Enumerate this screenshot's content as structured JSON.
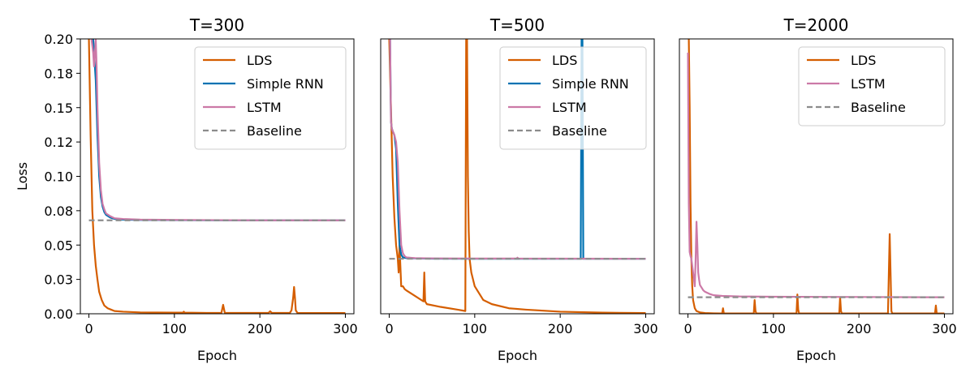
{
  "chart_data": [
    {
      "type": "line",
      "title": "T=300",
      "xlabel": "Epoch",
      "ylabel": "Loss",
      "xlim": [
        -10,
        310
      ],
      "ylim": [
        0,
        0.2
      ],
      "xticks": [
        0,
        100,
        200,
        300
      ],
      "yticks": [
        0,
        0.025,
        0.05,
        0.075,
        0.1,
        0.125,
        0.15,
        0.175,
        0.2
      ],
      "ytick_labels": [
        "0.00",
        "0.03",
        "0.05",
        "0.08",
        "0.10",
        "0.12",
        "0.15",
        "0.18",
        "0.20"
      ],
      "show_yticks": true,
      "legend_position": "top-right",
      "series": [
        {
          "name": "LDS",
          "color": "#d55e00",
          "dash": false,
          "x": [
            0,
            2,
            4,
            6,
            8,
            10,
            12,
            15,
            18,
            22,
            26,
            30,
            40,
            60,
            100,
            110,
            111,
            112,
            140,
            155,
            157,
            159,
            180,
            210,
            212,
            214,
            235,
            237,
            239,
            240,
            241,
            242,
            244,
            270,
            300
          ],
          "y": [
            0.2,
            0.13,
            0.075,
            0.05,
            0.035,
            0.025,
            0.016,
            0.01,
            0.006,
            0.004,
            0.003,
            0.002,
            0.0015,
            0.001,
            0.0008,
            0.0008,
            0.0015,
            0.0008,
            0.0006,
            0.0006,
            0.0065,
            0.0006,
            0.0006,
            0.0006,
            0.0018,
            0.0006,
            0.0006,
            0.0025,
            0.012,
            0.0195,
            0.012,
            0.0025,
            0.0006,
            0.0005,
            0.0005
          ]
        },
        {
          "name": "Simple RNN",
          "color": "#0072b2",
          "dash": false,
          "x": [
            5,
            8,
            10,
            12,
            14,
            16,
            18,
            20,
            25,
            30,
            40,
            60,
            100,
            200,
            300
          ],
          "y": [
            0.2,
            0.17,
            0.13,
            0.1,
            0.085,
            0.078,
            0.074,
            0.072,
            0.07,
            0.069,
            0.0685,
            0.0683,
            0.0681,
            0.068,
            0.068
          ]
        },
        {
          "name": "LSTM",
          "color": "#cc79a7",
          "dash": false,
          "x": [
            3,
            5,
            6,
            7,
            8,
            9,
            10,
            12,
            14,
            16,
            18,
            20,
            25,
            30,
            40,
            60,
            100,
            200,
            300
          ],
          "y": [
            0.2,
            0.19,
            0.18,
            0.19,
            0.2,
            0.18,
            0.15,
            0.11,
            0.09,
            0.08,
            0.076,
            0.073,
            0.071,
            0.0695,
            0.069,
            0.0685,
            0.0683,
            0.068,
            0.068
          ]
        },
        {
          "name": "Baseline",
          "color": "#8c8c8c",
          "dash": true,
          "x": [
            0,
            300
          ],
          "y": [
            0.068,
            0.068
          ]
        }
      ]
    },
    {
      "type": "line",
      "title": "T=500",
      "xlabel": "Epoch",
      "ylabel": "",
      "xlim": [
        -10,
        310
      ],
      "ylim": [
        0,
        0.2
      ],
      "show_yticks": false,
      "xticks": [
        0,
        100,
        200,
        300
      ],
      "legend_position": "top-right",
      "series": [
        {
          "name": "LDS",
          "color": "#d55e00",
          "dash": false,
          "x": [
            0,
            2,
            4,
            6,
            8,
            10,
            11,
            12,
            13,
            14,
            15,
            16,
            18,
            20,
            30,
            40,
            41,
            42,
            43,
            44,
            60,
            80,
            89,
            90,
            91,
            92,
            93,
            94,
            96,
            98,
            100,
            105,
            110,
            120,
            140,
            160,
            200,
            250,
            300
          ],
          "y": [
            0.2,
            0.15,
            0.1,
            0.07,
            0.05,
            0.04,
            0.03,
            0.05,
            0.035,
            0.02,
            0.02,
            0.02,
            0.018,
            0.017,
            0.013,
            0.009,
            0.03,
            0.009,
            0.008,
            0.007,
            0.005,
            0.003,
            0.002,
            0.2,
            0.2,
            0.1,
            0.06,
            0.04,
            0.03,
            0.025,
            0.02,
            0.015,
            0.01,
            0.007,
            0.004,
            0.003,
            0.0015,
            0.0008,
            0.0005
          ]
        },
        {
          "name": "Simple RNN",
          "color": "#0072b2",
          "dash": false,
          "x": [
            1,
            2,
            3,
            4,
            6,
            8,
            10,
            12,
            14,
            16,
            20,
            30,
            50,
            100,
            150,
            224,
            225,
            226,
            227,
            228,
            250,
            300
          ],
          "y": [
            0.2,
            0.14,
            0.135,
            0.133,
            0.13,
            0.12,
            0.08,
            0.05,
            0.043,
            0.041,
            0.0405,
            0.0403,
            0.0401,
            0.04,
            0.04,
            0.04,
            0.2,
            0.2,
            0.04,
            0.04,
            0.04,
            0.04
          ]
        },
        {
          "name": "LSTM",
          "color": "#cc79a7",
          "dash": false,
          "x": [
            1,
            2,
            3,
            4,
            6,
            8,
            10,
            12,
            14,
            16,
            18,
            20,
            30,
            50,
            100,
            149,
            150,
            151,
            200,
            300
          ],
          "y": [
            0.2,
            0.14,
            0.135,
            0.133,
            0.13,
            0.125,
            0.11,
            0.075,
            0.05,
            0.044,
            0.042,
            0.041,
            0.0405,
            0.0403,
            0.0402,
            0.0402,
            0.0408,
            0.0402,
            0.0401,
            0.04
          ]
        },
        {
          "name": "Baseline",
          "color": "#8c8c8c",
          "dash": true,
          "x": [
            0,
            300
          ],
          "y": [
            0.04,
            0.04
          ]
        }
      ]
    },
    {
      "type": "line",
      "title": "T=2000",
      "xlabel": "Epoch",
      "ylabel": "",
      "xlim": [
        -10,
        310
      ],
      "ylim": [
        0,
        0.2
      ],
      "show_yticks": false,
      "xticks": [
        0,
        100,
        200,
        300
      ],
      "legend_position": "top-right",
      "series": [
        {
          "name": "LDS",
          "color": "#d55e00",
          "dash": false,
          "x": [
            0,
            1,
            2,
            3,
            4,
            5,
            6,
            8,
            10,
            14,
            20,
            30,
            40,
            41,
            42,
            43,
            60,
            77,
            78,
            79,
            80,
            100,
            127,
            128,
            129,
            130,
            150,
            177,
            178,
            179,
            180,
            200,
            234,
            235,
            236,
            237,
            238,
            239,
            260,
            289,
            290,
            291,
            300
          ],
          "y": [
            0.2,
            0.2,
            0.15,
            0.08,
            0.04,
            0.02,
            0.01,
            0.004,
            0.002,
            0.001,
            0.0005,
            0.0003,
            0.0002,
            0.004,
            0.0002,
            0.0002,
            0.0002,
            0.0002,
            0.01,
            0.002,
            0.0002,
            0.0002,
            0.0002,
            0.014,
            0.003,
            0.0002,
            0.0002,
            0.0002,
            0.012,
            0.002,
            0.0002,
            0.0002,
            0.0002,
            0.03,
            0.058,
            0.03,
            0.002,
            0.0002,
            0.0002,
            0.0002,
            0.006,
            0.0002,
            0.0002
          ]
        },
        {
          "name": "LSTM",
          "color": "#cc79a7",
          "dash": false,
          "x": [
            0,
            1,
            2,
            3,
            4,
            5,
            6,
            7,
            8,
            9,
            10,
            11,
            12,
            13,
            14,
            16,
            18,
            20,
            25,
            30,
            40,
            60,
            100,
            200,
            300
          ],
          "y": [
            0.19,
            0.08,
            0.045,
            0.042,
            0.04,
            0.035,
            0.03,
            0.025,
            0.02,
            0.04,
            0.067,
            0.05,
            0.03,
            0.025,
            0.021,
            0.019,
            0.017,
            0.016,
            0.0145,
            0.0135,
            0.013,
            0.0126,
            0.0124,
            0.0122,
            0.012
          ]
        },
        {
          "name": "Baseline",
          "color": "#8c8c8c",
          "dash": true,
          "x": [
            0,
            300
          ],
          "y": [
            0.012,
            0.012
          ]
        }
      ]
    }
  ]
}
